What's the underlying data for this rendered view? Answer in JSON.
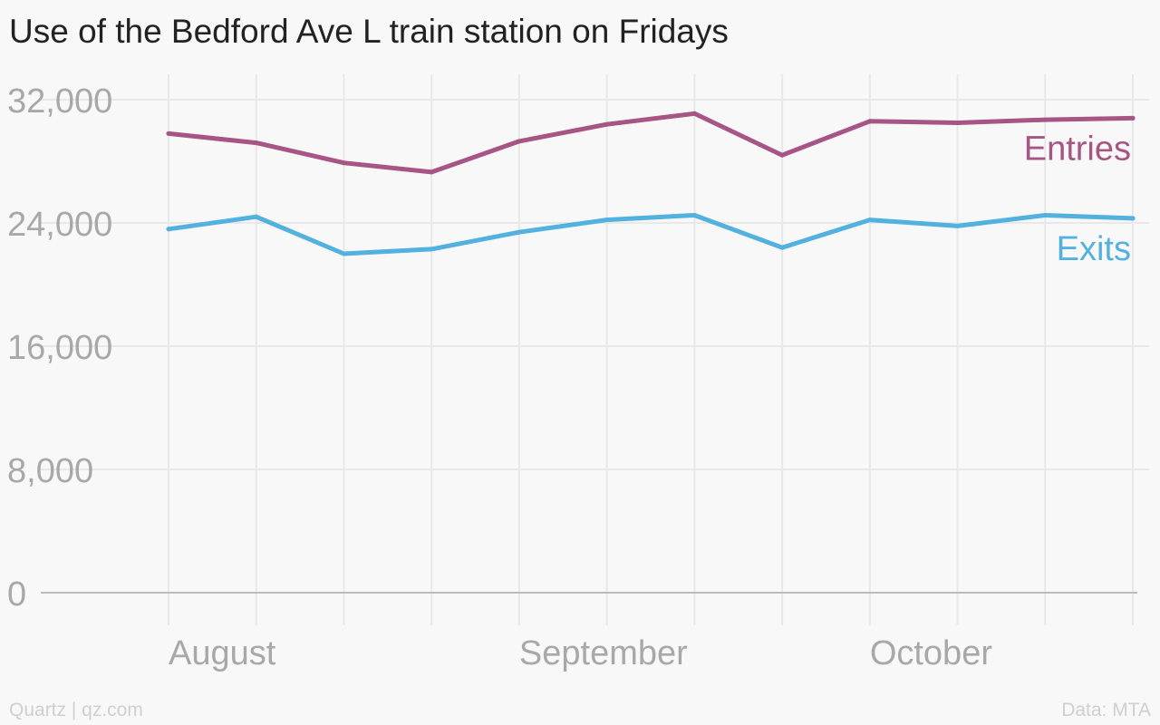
{
  "title": "Use of the Bedford Ave L train station on Fridays",
  "footer": {
    "source_left": "Quartz | qz.com",
    "source_right": "Data: MTA"
  },
  "colors": {
    "entries": "#a65585",
    "exits": "#53b1e0",
    "grid": "#e8e8e8",
    "baseline": "#bbbbbb",
    "tick_label": "#a8a8a8",
    "title": "#222222",
    "footer": "#cfcfcf"
  },
  "chart_data": {
    "type": "line",
    "title": "Use of the Bedford Ave L train station on Fridays",
    "x_tick_labels": [
      "August",
      "September",
      "October"
    ],
    "x_tick_label_positions": [
      0,
      4,
      8
    ],
    "x_point_count": 12,
    "yticks": [
      0,
      8000,
      16000,
      24000,
      32000
    ],
    "ytick_labels": [
      "0",
      "8,000",
      "16,000",
      "24,000",
      "32,000"
    ],
    "ylim": [
      0,
      32000
    ],
    "grid": true,
    "series": [
      {
        "name": "Entries",
        "values": [
          29800,
          29200,
          27900,
          27300,
          29300,
          30400,
          31100,
          28400,
          30600,
          30500,
          30700,
          30800
        ]
      },
      {
        "name": "Exits",
        "values": [
          23600,
          24400,
          22000,
          22300,
          23400,
          24200,
          24500,
          22400,
          24200,
          23800,
          24500,
          24300
        ]
      }
    ]
  }
}
